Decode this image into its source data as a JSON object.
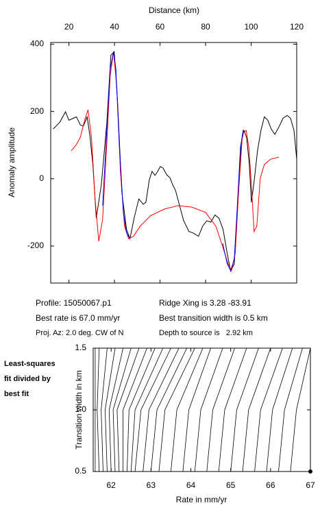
{
  "chart_data": [
    {
      "type": "line",
      "title": "Distance (km)",
      "y_label": "Anomaly amplitude",
      "xlim": [
        12,
        120
      ],
      "xticks": [
        20,
        40,
        60,
        80,
        100,
        120
      ],
      "ylim": [
        -310,
        405
      ],
      "yticks": [
        400,
        200,
        0,
        -200
      ],
      "series": [
        {
          "color": "#000000",
          "x": [
            13.1,
            16,
            18.5,
            20,
            22,
            23.3,
            25,
            26.3,
            28,
            29.3,
            30.5,
            32,
            34.2,
            36.6,
            38.4,
            39.9,
            41.4,
            43.2,
            45.3,
            46.8,
            48.6,
            50.7,
            52.6,
            53.8,
            55.3,
            56.5,
            57.8,
            59,
            60.1,
            61.3,
            62.9,
            64.4,
            65.6,
            66.8,
            68.6,
            70.4,
            72.7,
            74.5,
            76.9,
            78.7,
            80.5,
            82.3,
            84.1,
            85.9,
            87.7,
            89.5,
            91,
            92.6,
            94.1,
            95.6,
            96.8,
            98,
            99.2,
            100.1,
            101.3,
            102.8,
            104.3,
            105.8,
            107.3,
            108.8,
            110.4,
            112.2,
            114,
            115.8,
            117.3,
            118.8,
            120
          ],
          "values": [
            148,
            168,
            199,
            174,
            180,
            184,
            160,
            156,
            184,
            123,
            42,
            -117,
            -19,
            164,
            367,
            378,
            225,
            -39,
            -151,
            -178,
            -117,
            -60,
            -76,
            -70,
            -3,
            22,
            10,
            22,
            36,
            32,
            12,
            2,
            -19,
            -35,
            -80,
            -125,
            -157,
            -161,
            -171,
            -141,
            -125,
            -129,
            -108,
            -117,
            -151,
            -222,
            -275,
            -253,
            -80,
            103,
            144,
            123,
            42,
            -70,
            -9,
            83,
            144,
            184,
            174,
            148,
            132,
            154,
            180,
            188,
            180,
            144,
            58
          ]
        },
        {
          "color": "#ff0000",
          "x": [
            21,
            23,
            25,
            26.9,
            28.4,
            29.9,
            31.5,
            33.1,
            34.8,
            36.6,
            38.1,
            39.6,
            41.1,
            42.6,
            44.4,
            46.2,
            48.3,
            51.3,
            55.8,
            61.9,
            67.9,
            73.9,
            80,
            84.5,
            87.5,
            89.9,
            91.4,
            93,
            94.5,
            96.2,
            97.8,
            99,
            100.1,
            101.3,
            102.5,
            104,
            105.8,
            108.5,
            112.2
          ],
          "values": [
            83,
            99,
            123,
            174,
            205,
            123,
            -60,
            -186,
            -121,
            103,
            306,
            378,
            266,
            22,
            -141,
            -178,
            -171,
            -141,
            -110,
            -90,
            -80,
            -84,
            -100,
            -141,
            -202,
            -253,
            -273,
            -222,
            -39,
            134,
            144,
            93,
            -19,
            -157,
            -141,
            2,
            42,
            58,
            64
          ]
        },
        {
          "color": "#0000ff",
          "x": [
            34.8,
            36.6,
            38.1,
            39.6,
            40.6,
            42.1,
            43.9,
            45.3,
            46.8,
            null,
            87.5,
            89.5,
            91,
            92.6,
            94.1,
            95.3,
            96.5
          ],
          "values": [
            -80,
            144,
            327,
            378,
            327,
            103,
            -100,
            -161,
            -178,
            null,
            -192,
            -253,
            -273,
            -239,
            -60,
            93,
            144
          ]
        }
      ],
      "annotations": [
        "Profile: 15050067.p1",
        "Best rate is 67.0 mm/yr",
        "Proj. Az: 2.0 deg. CW of N",
        "Ridge Xing is 3.28 -83.91",
        "Best transition width is 0.5 km",
        "Depth to source is   2.92 km"
      ]
    },
    {
      "type": "contour",
      "x_label": "Rate in mm/yr",
      "y_label": "Transition width in km",
      "xlim": [
        61.55,
        67
      ],
      "xticks": [
        62,
        63,
        64,
        65,
        66,
        67
      ],
      "ylim": [
        0.5,
        1.5
      ],
      "yticks": [
        0.5,
        {
          "value": 1,
          "label": "1.0"
        },
        1.5
      ],
      "color": "#000000",
      "y": [
        0.5,
        1,
        1.5
      ],
      "contours": [
        [
          61.6,
          61.6,
          61.6
        ],
        [
          61.7,
          61.65,
          61.7
        ],
        [
          61.8,
          61.75,
          61.9
        ],
        [
          61.9,
          61.85,
          62.1
        ],
        [
          62.0,
          61.95,
          62.3
        ],
        [
          62.1,
          62.05,
          62.5
        ],
        [
          62.2,
          62.15,
          62.7
        ],
        [
          62.3,
          62.3,
          62.9
        ],
        [
          62.4,
          62.45,
          63.1
        ],
        [
          62.5,
          62.6,
          63.3
        ],
        [
          62.6,
          62.75,
          63.5
        ],
        [
          62.8,
          62.95,
          63.7
        ],
        [
          63.0,
          63.15,
          63.9
        ],
        [
          63.2,
          63.35,
          64.1
        ],
        [
          63.5,
          63.65,
          64.3
        ],
        [
          63.8,
          63.95,
          64.5
        ],
        [
          64.1,
          64.25,
          64.8
        ],
        [
          64.4,
          64.55,
          65.1
        ],
        [
          64.7,
          64.85,
          65.4
        ],
        [
          65.0,
          65.15,
          65.7
        ],
        [
          65.3,
          65.45,
          66.0
        ],
        [
          65.6,
          65.75,
          66.3
        ],
        [
          65.9,
          66.05,
          66.55
        ],
        [
          66.2,
          66.35,
          66.8
        ],
        [
          66.5,
          66.65,
          67.0
        ]
      ],
      "point": {
        "x": 67,
        "y": 0.5
      },
      "annotations": [
        "Least-squares",
        "fit divided by",
        "best fit"
      ]
    }
  ]
}
